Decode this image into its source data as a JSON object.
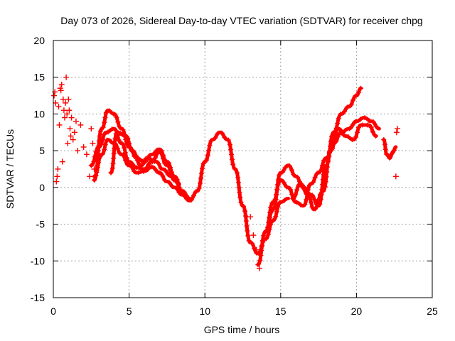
{
  "chart_data": {
    "type": "scatter",
    "title": "Day 073 of 2026, Sidereal Day-to-day VTEC variation (SDTVAR) for receiver chpg",
    "xlabel": "GPS time / hours",
    "ylabel": "SDTVAR / TECUs",
    "xlim": [
      0,
      25
    ],
    "ylim": [
      -15,
      20
    ],
    "xticks": [
      0,
      5,
      10,
      15,
      20,
      25
    ],
    "yticks": [
      -15,
      -10,
      -5,
      0,
      5,
      10,
      15,
      20
    ],
    "xtick_labels": [
      "0",
      "5",
      "10",
      "15",
      "20",
      "25"
    ],
    "ytick_labels": [
      "-15",
      "-10",
      "-5",
      "0",
      "5",
      "10",
      "15",
      "20"
    ],
    "grid": true,
    "marker": "plus",
    "color": "#ff0000",
    "series": [
      {
        "name": "track-main",
        "x": [
          2.5,
          3.0,
          3.5,
          4.0,
          4.5,
          5.0,
          5.5,
          6.0,
          6.5,
          7.0,
          7.5,
          8.0,
          8.5,
          9.0,
          9.5,
          10.0,
          10.5,
          11.0,
          11.5,
          12.0,
          12.5,
          13.0,
          13.5,
          14.0,
          14.5,
          15.0,
          15.5
        ],
        "y": [
          3.0,
          5.5,
          7.5,
          8.0,
          6.0,
          3.5,
          2.7,
          2.5,
          3.5,
          4.8,
          3.0,
          1.0,
          -0.5,
          -1.8,
          -0.5,
          3.5,
          6.5,
          7.5,
          6.5,
          2.5,
          -2.5,
          -7.5,
          -9.0,
          -7.0,
          -4.5,
          -2.0,
          -1.5
        ]
      },
      {
        "name": "track-upper",
        "x": [
          2.7,
          3.2,
          3.6,
          4.0,
          4.5,
          5.0,
          5.5,
          6.0,
          6.5,
          7.0,
          7.5,
          8.0,
          8.5,
          9.0
        ],
        "y": [
          1.0,
          8.0,
          10.5,
          10.0,
          8.0,
          5.5,
          4.0,
          3.5,
          4.5,
          5.2,
          3.5,
          1.5,
          -0.5,
          -1.5
        ]
      },
      {
        "name": "track-lower",
        "x": [
          2.7,
          3.2,
          3.6,
          4.0,
          4.5,
          5.0,
          5.5,
          6.0,
          6.5,
          7.0,
          7.5,
          8.0,
          8.5,
          9.0
        ],
        "y": [
          1.5,
          4.5,
          6.5,
          6.0,
          4.5,
          3.0,
          2.0,
          2.2,
          2.8,
          2.0,
          0.8,
          0.0,
          -1.0,
          -1.8
        ]
      },
      {
        "name": "track-mid",
        "x": [
          3.8,
          4.2,
          4.8,
          5.2,
          5.8,
          6.2,
          6.8,
          7.2,
          7.8,
          8.3
        ],
        "y": [
          2.0,
          7.5,
          7.0,
          5.0,
          3.0,
          4.0,
          3.5,
          2.5,
          1.5,
          0.5
        ]
      },
      {
        "name": "track-late",
        "x": [
          13.5,
          14.0,
          14.5,
          15.0,
          15.5,
          16.0,
          16.5,
          17.0,
          17.5,
          18.0,
          18.5,
          19.0,
          19.5,
          20.0,
          20.5,
          21.0,
          21.5
        ],
        "y": [
          -10.5,
          -6.0,
          -2.0,
          1.0,
          0.0,
          -2.0,
          -2.5,
          0.5,
          2.0,
          4.0,
          6.0,
          7.5,
          8.0,
          9.0,
          9.5,
          9.0,
          8.0
        ]
      },
      {
        "name": "track-late-b",
        "x": [
          14.0,
          14.5,
          15.0,
          15.5,
          16.0,
          16.5,
          17.0,
          17.5,
          18.0,
          18.5,
          19.0,
          19.5,
          20.0,
          20.3
        ],
        "y": [
          -6.0,
          -3.0,
          2.0,
          3.0,
          1.5,
          0.0,
          -1.0,
          -2.5,
          3.0,
          7.5,
          10.0,
          11.0,
          12.5,
          13.5
        ]
      },
      {
        "name": "track-late-c",
        "x": [
          15.8,
          16.3,
          16.8,
          17.2,
          17.8,
          18.3,
          18.8,
          19.3,
          19.8,
          20.3,
          20.8,
          21.3
        ],
        "y": [
          -1.5,
          0.5,
          -1.0,
          -3.0,
          -0.5,
          5.0,
          8.0,
          7.0,
          6.5,
          8.5,
          8.5,
          7.0
        ]
      },
      {
        "name": "track-end",
        "x": [
          21.8,
          22.0,
          22.2,
          22.4,
          22.6
        ],
        "y": [
          6.5,
          4.5,
          4.0,
          4.8,
          5.5
        ]
      }
    ],
    "points": {
      "x": [
        0.05,
        0.1,
        0.15,
        0.2,
        0.25,
        0.3,
        0.35,
        0.4,
        0.45,
        0.5,
        0.55,
        0.6,
        0.65,
        0.7,
        0.75,
        0.8,
        0.85,
        0.9,
        0.95,
        1.0,
        1.05,
        1.1,
        1.15,
        1.2,
        1.3,
        1.4,
        1.5,
        1.6,
        1.8,
        2.0,
        2.2,
        2.4,
        2.5,
        2.6,
        2.7,
        13.0,
        13.2,
        13.4,
        13.6,
        22.6,
        22.65,
        22.7
      ],
      "y": [
        12.5,
        13.0,
        11.5,
        0.8,
        1.5,
        2.5,
        11.0,
        8.5,
        13.5,
        13.2,
        14.0,
        3.5,
        12.0,
        10.5,
        9.5,
        11.5,
        15.0,
        10.0,
        6.0,
        12.0,
        10.5,
        8.0,
        7.0,
        9.5,
        6.5,
        7.5,
        9.0,
        5.0,
        8.5,
        5.5,
        4.5,
        1.5,
        8.0,
        6.0,
        2.5,
        -4.0,
        -6.5,
        -8.5,
        -11.0,
        1.5,
        7.5,
        8.0
      ]
    }
  }
}
